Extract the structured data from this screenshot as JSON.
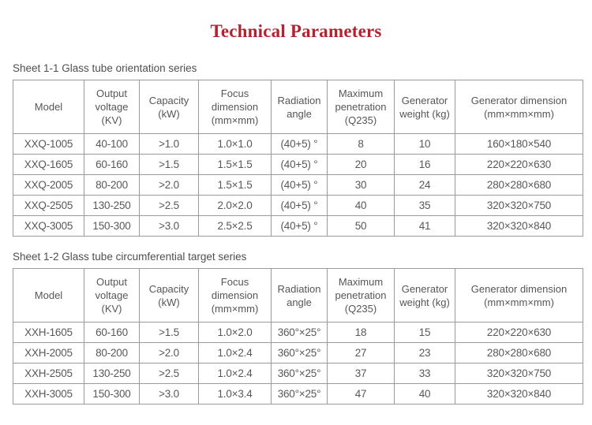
{
  "page": {
    "title": "Technical Parameters"
  },
  "colors": {
    "title_red": "#b4212f",
    "table_border": "#9a9a9a",
    "text_gray": "#5a5a5a",
    "background": "#ffffff"
  },
  "sheet1": {
    "caption": "Sheet 1-1 Glass tube orientation series",
    "headers": [
      "Model",
      "Output voltage (KV)",
      "Capacity (kW)",
      "Focus dimension (mm×mm)",
      "Radiation angle",
      "Maximum penetration (Q235)",
      "Generator weight (kg)",
      "Generator dimension (mm×mm×mm)"
    ],
    "rows": [
      [
        "XXQ-1005",
        "40-100",
        ">1.0",
        "1.0×1.0",
        "(40+5) °",
        "8",
        "10",
        "160×180×540"
      ],
      [
        "XXQ-1605",
        "60-160",
        ">1.5",
        "1.5×1.5",
        "(40+5) °",
        "20",
        "16",
        "220×220×630"
      ],
      [
        "XXQ-2005",
        "80-200",
        ">2.0",
        "1.5×1.5",
        "(40+5) °",
        "30",
        "24",
        "280×280×680"
      ],
      [
        "XXQ-2505",
        "130-250",
        ">2.5",
        "2.0×2.0",
        "(40+5) °",
        "40",
        "35",
        "320×320×750"
      ],
      [
        "XXQ-3005",
        "150-300",
        ">3.0",
        "2.5×2.5",
        "(40+5) °",
        "50",
        "41",
        "320×320×840"
      ]
    ]
  },
  "sheet2": {
    "caption": "Sheet 1-2 Glass tube circumferential target series",
    "headers": [
      "Model",
      "Output voltage (KV)",
      "Capacity (kW)",
      "Focus dimension (mm×mm)",
      "Radiation angle",
      "Maximum penetration (Q235)",
      "Generator weight (kg)",
      "Generator dimension (mm×mm×mm)"
    ],
    "rows": [
      [
        "XXH-1605",
        "60-160",
        ">1.5",
        "1.0×2.0",
        "360°×25°",
        "18",
        "15",
        "220×220×630"
      ],
      [
        "XXH-2005",
        "80-200",
        ">2.0",
        "1.0×2.4",
        "360°×25°",
        "27",
        "23",
        "280×280×680"
      ],
      [
        "XXH-2505",
        "130-250",
        ">2.5",
        "1.0×2.4",
        "360°×25°",
        "37",
        "33",
        "320×320×750"
      ],
      [
        "XXH-3005",
        "150-300",
        ">3.0",
        "1.0×3.4",
        "360°×25°",
        "47",
        "40",
        "320×320×840"
      ]
    ]
  }
}
